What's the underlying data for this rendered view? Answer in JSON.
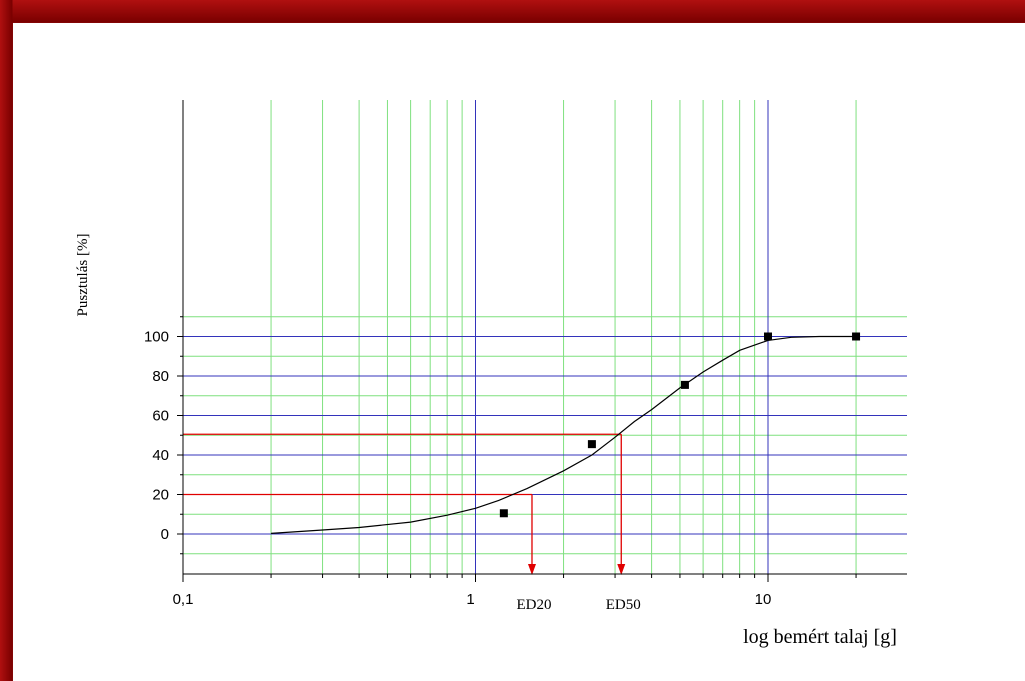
{
  "chart_data": {
    "type": "scatter",
    "xlabel": "log bemért talaj [g]",
    "ylabel": "Pusztulás [%]",
    "x_scale": "log",
    "xlim": [
      0.1,
      30
    ],
    "ylim": [
      -10,
      110
    ],
    "x_ticks": [
      {
        "value": 0.1,
        "label": "0,1"
      },
      {
        "value": 1,
        "label": "1"
      },
      {
        "value": 10,
        "label": "10"
      }
    ],
    "y_ticks": [
      0,
      20,
      40,
      60,
      80,
      100
    ],
    "grid": "on",
    "series": [
      {
        "type": "scatter",
        "points": [
          [
            1.25,
            10.5
          ],
          [
            2.5,
            45.5
          ],
          [
            5.2,
            75.5
          ],
          [
            10,
            100
          ],
          [
            20,
            100
          ]
        ]
      },
      {
        "type": "line",
        "points": [
          [
            0.2,
            0.3
          ],
          [
            0.3,
            2
          ],
          [
            0.4,
            3.3
          ],
          [
            0.6,
            6
          ],
          [
            0.8,
            9.5
          ],
          [
            1.0,
            13
          ],
          [
            1.2,
            17
          ],
          [
            1.5,
            23
          ],
          [
            2.0,
            32
          ],
          [
            2.5,
            40
          ],
          [
            3.0,
            49
          ],
          [
            3.5,
            57
          ],
          [
            4.0,
            63
          ],
          [
            5.0,
            74
          ],
          [
            6.0,
            82
          ],
          [
            7.0,
            88
          ],
          [
            8.0,
            93
          ],
          [
            10,
            98
          ],
          [
            12,
            99.6
          ],
          [
            15,
            100
          ],
          [
            20,
            100
          ]
        ]
      }
    ],
    "annotations": [
      {
        "label": "ED20",
        "x": 1.56,
        "y": 20
      },
      {
        "label": "ED50",
        "x": 3.15,
        "y": 50.5
      }
    ]
  },
  "colors": {
    "major_grid": "#3333bb",
    "minor_grid": "#7fe07f",
    "guide": "#e00000",
    "curve": "#000000",
    "frame": "#7a0000"
  }
}
